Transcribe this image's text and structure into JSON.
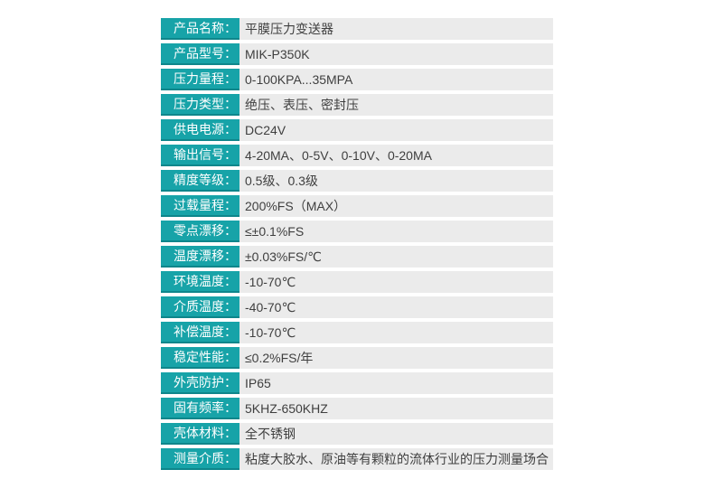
{
  "colors": {
    "label_background": "#17a3a8",
    "label_border_bottom": "#0e868b",
    "label_text": "#ffffff",
    "value_background": "#ebebeb",
    "value_text": "#3f3f3f",
    "page_background": "#ffffff"
  },
  "spec_table": {
    "rows": [
      {
        "label": "产品名称：",
        "value": "平膜压力变送器"
      },
      {
        "label": "产品型号：",
        "value": "MIK-P350K"
      },
      {
        "label": "压力量程：",
        "value": "0-100KPA...35MPA"
      },
      {
        "label": "压力类型：",
        "value": "绝压、表压、密封压"
      },
      {
        "label": "供电电源：",
        "value": "DC24V"
      },
      {
        "label": "输出信号：",
        "value": "4-20MA、0-5V、0-10V、0-20MA"
      },
      {
        "label": "精度等级：",
        "value": "0.5级、0.3级"
      },
      {
        "label": "过载量程：",
        "value": "200%FS（MAX）"
      },
      {
        "label": "零点漂移：",
        "value": "≤±0.1%FS"
      },
      {
        "label": "温度漂移：",
        "value": "±0.03%FS/℃"
      },
      {
        "label": "环境温度：",
        "value": "-10-70℃"
      },
      {
        "label": "介质温度：",
        "value": "-40-70℃"
      },
      {
        "label": "补偿温度：",
        "value": "-10-70℃"
      },
      {
        "label": "稳定性能：",
        "value": "≤0.2%FS/年"
      },
      {
        "label": "外壳防护：",
        "value": "IP65"
      },
      {
        "label": "固有频率：",
        "value": "5KHZ-650KHZ"
      },
      {
        "label": "壳体材料：",
        "value": "全不锈钢"
      },
      {
        "label": "测量介质：",
        "value": "粘度大胶水、原油等有颗粒的流体行业的压力测量场合"
      }
    ]
  }
}
